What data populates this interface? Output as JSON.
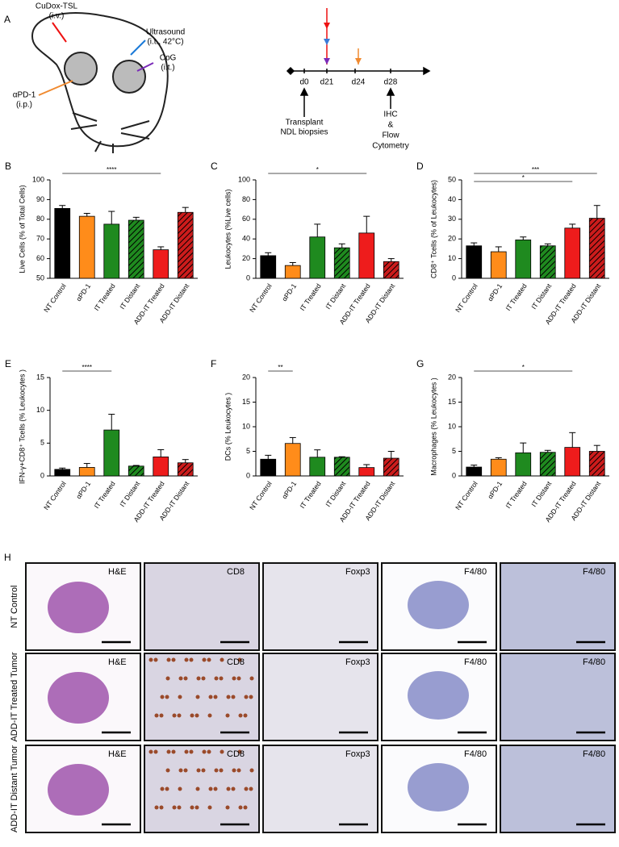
{
  "panel_a": {
    "label": "A",
    "drugs": [
      "CuDox-TSL",
      "(i.v.)",
      "Ultrasound",
      "(i.t., 42°C)",
      "CpG",
      "(i.t.)",
      "αPD-1",
      "(i.p.)"
    ],
    "days": [
      "d0",
      "d21",
      "d24",
      "d28"
    ],
    "notes": [
      "Transplant",
      "NDL biopsies",
      "IHC",
      "&",
      "Flow",
      "Cytometry"
    ]
  },
  "chart_data": [
    {
      "type": "bar",
      "panel": "B",
      "ylabel": "Live Cells (% of Total Cells)",
      "categories": [
        "NT Control",
        "αPD-1",
        "IT Treated",
        "IT Distant",
        "ADD-IT Treated",
        "ADD-IT Distant"
      ],
      "values": [
        85.5,
        81.5,
        77.5,
        79.5,
        64.5,
        83.5
      ],
      "errors": [
        1.5,
        1.5,
        6.5,
        1.5,
        1.5,
        2.5
      ],
      "colors": [
        "#000000",
        "#ff8c1a",
        "#1f8a1f",
        "#1f8a1f",
        "#ee1c1c",
        "#cc1c1c"
      ],
      "hatched": [
        false,
        false,
        false,
        true,
        false,
        true
      ],
      "ylim": [
        50,
        100
      ],
      "yticks": [
        50,
        60,
        70,
        80,
        90,
        100
      ],
      "significance": [
        {
          "from": 0,
          "to": 4,
          "label": "****"
        }
      ]
    },
    {
      "type": "bar",
      "panel": "C",
      "ylabel": "Leukocytes (%Live cells)",
      "categories": [
        "NT Control",
        "αPD-1",
        "IT Treated",
        "IT Distant",
        "ADD-IT Treated",
        "ADD-IT Distant"
      ],
      "values": [
        23,
        13,
        42,
        31,
        46,
        17
      ],
      "errors": [
        3,
        3,
        13,
        4,
        17,
        3
      ],
      "colors": [
        "#000000",
        "#ff8c1a",
        "#1f8a1f",
        "#1f8a1f",
        "#ee1c1c",
        "#cc1c1c"
      ],
      "hatched": [
        false,
        false,
        false,
        true,
        false,
        true
      ],
      "ylim": [
        0,
        100
      ],
      "yticks": [
        0,
        20,
        40,
        60,
        80,
        100
      ],
      "significance": [
        {
          "from": 0,
          "to": 4,
          "label": "*"
        }
      ]
    },
    {
      "type": "bar",
      "panel": "D",
      "ylabel": "CD8⁺ Tcells (% of Leukocytes)",
      "categories": [
        "NT Control",
        "αPD-1",
        "IT Treated",
        "IT Distant",
        "ADD-IT Treated",
        "ADD-IT Distant"
      ],
      "values": [
        16.5,
        13.5,
        19.5,
        16.5,
        25.5,
        30.5
      ],
      "errors": [
        1.5,
        2.5,
        1.5,
        1,
        2,
        6.5
      ],
      "colors": [
        "#000000",
        "#ff8c1a",
        "#1f8a1f",
        "#1f8a1f",
        "#ee1c1c",
        "#cc1c1c"
      ],
      "hatched": [
        false,
        false,
        false,
        true,
        false,
        true
      ],
      "ylim": [
        0,
        50
      ],
      "yticks": [
        0,
        10,
        20,
        30,
        40,
        50
      ],
      "significance": [
        {
          "from": 0,
          "to": 5,
          "label": "***"
        },
        {
          "from": 0,
          "to": 4,
          "label": "*"
        }
      ]
    },
    {
      "type": "bar",
      "panel": "E",
      "ylabel": "IFN-γ+CD8⁺ Tcells (% Leukocytes )",
      "categories": [
        "NT Control",
        "αPD-1",
        "IT Treated",
        "IT Distant",
        "ADD-IT Treated",
        "ADD-IT Distant"
      ],
      "values": [
        1.0,
        1.3,
        7.0,
        1.5,
        2.9,
        2.0
      ],
      "errors": [
        0.2,
        0.6,
        2.4,
        0.1,
        1.1,
        0.5
      ],
      "colors": [
        "#000000",
        "#ff8c1a",
        "#1f8a1f",
        "#1f8a1f",
        "#ee1c1c",
        "#cc1c1c"
      ],
      "hatched": [
        false,
        false,
        false,
        true,
        false,
        true
      ],
      "ylim": [
        0,
        15
      ],
      "yticks": [
        0,
        5,
        10,
        15
      ],
      "significance": [
        {
          "from": 0,
          "to": 2,
          "label": "****"
        }
      ]
    },
    {
      "type": "bar",
      "panel": "F",
      "ylabel": "DCs (% Leukocytes )",
      "categories": [
        "NT Control",
        "αPD-1",
        "IT Treated",
        "IT Distant",
        "ADD-IT Treated",
        "ADD-IT Distant"
      ],
      "values": [
        3.4,
        6.6,
        3.8,
        3.8,
        1.7,
        3.6
      ],
      "errors": [
        0.8,
        1.2,
        1.5,
        0.1,
        0.6,
        1.4
      ],
      "colors": [
        "#000000",
        "#ff8c1a",
        "#1f8a1f",
        "#1f8a1f",
        "#ee1c1c",
        "#cc1c1c"
      ],
      "hatched": [
        false,
        false,
        false,
        true,
        false,
        true
      ],
      "ylim": [
        0,
        20
      ],
      "yticks": [
        0,
        5,
        10,
        15,
        20
      ],
      "significance": [
        {
          "from": 0,
          "to": 1,
          "label": "**"
        }
      ]
    },
    {
      "type": "bar",
      "panel": "G",
      "ylabel": "Macrophages (% Leukocytes )",
      "categories": [
        "NT Control",
        "αPD-1",
        "IT Treated",
        "IT Distant",
        "ADD-IT Treated",
        "ADD-IT Distant"
      ],
      "values": [
        1.8,
        3.4,
        4.7,
        4.8,
        5.8,
        5.0
      ],
      "errors": [
        0.4,
        0.3,
        2.0,
        0.4,
        3.0,
        1.2
      ],
      "colors": [
        "#000000",
        "#ff8c1a",
        "#1f8a1f",
        "#1f8a1f",
        "#ee1c1c",
        "#cc1c1c"
      ],
      "hatched": [
        false,
        false,
        false,
        true,
        false,
        true
      ],
      "ylim": [
        0,
        20
      ],
      "yticks": [
        0,
        5,
        10,
        15,
        20
      ],
      "significance": [
        {
          "from": 0,
          "to": 4,
          "label": "*"
        }
      ]
    }
  ],
  "panel_h": {
    "label": "H",
    "rows": [
      "NT Control",
      "ADD-IT Treated Tumor",
      "ADD-IT Distant Tumor"
    ],
    "columns": [
      "H&E",
      "CD8",
      "Foxp3",
      "F4/80",
      "F4/80"
    ]
  }
}
